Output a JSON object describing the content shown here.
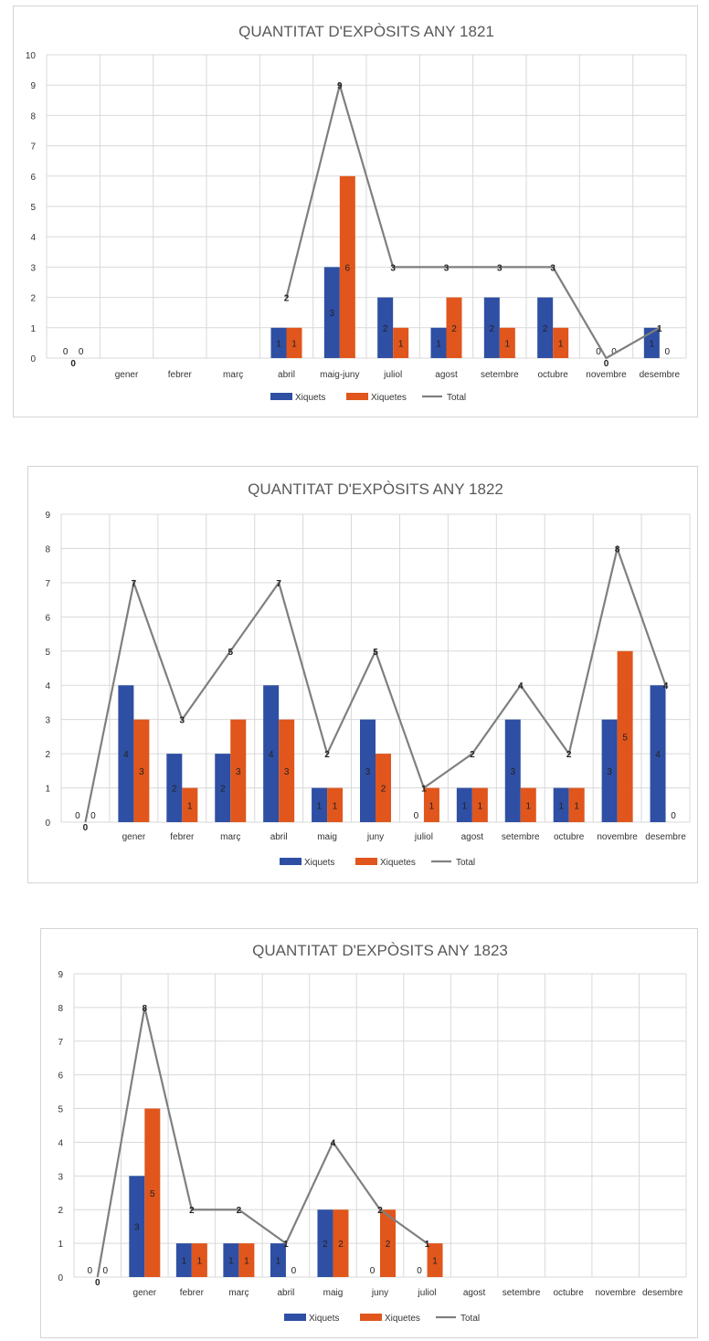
{
  "chart_data": [
    {
      "type": "bar",
      "title": "QUANTITAT D'EXPÒSITS ANY 1821",
      "categories": [
        "",
        "gener",
        "febrer",
        "març",
        "abril",
        "maig-juny",
        "juliol",
        "agost",
        "setembre",
        "octubre",
        "novembre",
        "desembre"
      ],
      "ylim": [
        0,
        10
      ],
      "yticks": [
        0,
        1,
        2,
        3,
        4,
        5,
        6,
        7,
        8,
        9,
        10
      ],
      "grid": true,
      "legend_position": "bottom",
      "series": [
        {
          "name": "Xiquets",
          "type": "bar",
          "color": "#2e4fa3",
          "values": [
            0,
            null,
            null,
            null,
            1,
            3,
            2,
            1,
            2,
            2,
            0,
            1
          ]
        },
        {
          "name": "Xiquetes",
          "type": "bar",
          "color": "#e0561c",
          "values": [
            0,
            null,
            null,
            null,
            1,
            6,
            1,
            2,
            1,
            1,
            0,
            0
          ]
        },
        {
          "name": "Total",
          "type": "line",
          "color": "#7f7f7f",
          "values": [
            0,
            null,
            null,
            null,
            2,
            9,
            3,
            3,
            3,
            3,
            0,
            1
          ]
        }
      ]
    },
    {
      "type": "bar",
      "title": "QUANTITAT D'EXPÒSITS ANY 1822",
      "categories": [
        "",
        "gener",
        "febrer",
        "març",
        "abril",
        "maig",
        "juny",
        "juliol",
        "agost",
        "setembre",
        "octubre",
        "novembre",
        "desembre"
      ],
      "ylim": [
        0,
        9
      ],
      "yticks": [
        0,
        1,
        2,
        3,
        4,
        5,
        6,
        7,
        8,
        9
      ],
      "grid": true,
      "legend_position": "bottom",
      "series": [
        {
          "name": "Xiquets",
          "type": "bar",
          "color": "#2e4fa3",
          "values": [
            0,
            4,
            2,
            2,
            4,
            1,
            3,
            0,
            1,
            3,
            1,
            3,
            4
          ]
        },
        {
          "name": "Xiquetes",
          "type": "bar",
          "color": "#e0561c",
          "values": [
            0,
            3,
            1,
            3,
            3,
            1,
            2,
            1,
            1,
            1,
            1,
            5,
            0
          ]
        },
        {
          "name": "Total",
          "type": "line",
          "color": "#7f7f7f",
          "values": [
            0,
            7,
            3,
            5,
            7,
            2,
            5,
            1,
            2,
            4,
            2,
            8,
            4
          ]
        }
      ]
    },
    {
      "type": "bar",
      "title": "QUANTITAT D'EXPÒSITS ANY 1823",
      "categories": [
        "",
        "gener",
        "febrer",
        "març",
        "abril",
        "maig",
        "juny",
        "juliol",
        "agost",
        "setembre",
        "octubre",
        "novembre",
        "desembre"
      ],
      "ylim": [
        0,
        9
      ],
      "yticks": [
        0,
        1,
        2,
        3,
        4,
        5,
        6,
        7,
        8,
        9
      ],
      "grid": true,
      "legend_position": "bottom",
      "series": [
        {
          "name": "Xiquets",
          "type": "bar",
          "color": "#2e4fa3",
          "values": [
            0,
            3,
            1,
            1,
            1,
            2,
            0,
            0,
            null,
            null,
            null,
            null,
            null
          ]
        },
        {
          "name": "Xiquetes",
          "type": "bar",
          "color": "#e0561c",
          "values": [
            0,
            5,
            1,
            1,
            0,
            2,
            2,
            1,
            null,
            null,
            null,
            null,
            null
          ]
        },
        {
          "name": "Total",
          "type": "line",
          "color": "#7f7f7f",
          "values": [
            0,
            8,
            2,
            2,
            1,
            4,
            2,
            1,
            null,
            null,
            null,
            null,
            null
          ]
        }
      ]
    }
  ]
}
